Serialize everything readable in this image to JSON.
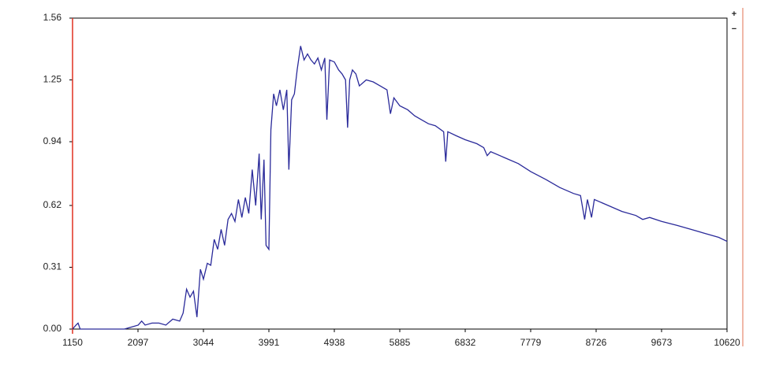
{
  "chart_data": {
    "type": "line",
    "x": [
      1150,
      1200,
      1230,
      1260,
      1500,
      1900,
      2000,
      2100,
      2150,
      2200,
      2300,
      2400,
      2500,
      2600,
      2700,
      2750,
      2800,
      2850,
      2900,
      2950,
      3000,
      3044,
      3100,
      3150,
      3200,
      3250,
      3300,
      3350,
      3400,
      3450,
      3500,
      3550,
      3600,
      3650,
      3700,
      3750,
      3800,
      3850,
      3880,
      3920,
      3950,
      3991,
      4020,
      4060,
      4100,
      4150,
      4200,
      4250,
      4280,
      4320,
      4360,
      4400,
      4450,
      4500,
      4550,
      4600,
      4650,
      4700,
      4750,
      4800,
      4830,
      4870,
      4938,
      5000,
      5050,
      5100,
      5130,
      5160,
      5200,
      5250,
      5300,
      5400,
      5500,
      5600,
      5700,
      5750,
      5800,
      5885,
      6000,
      6100,
      6200,
      6300,
      6400,
      6520,
      6550,
      6580,
      6700,
      6832,
      7000,
      7100,
      7150,
      7200,
      7400,
      7600,
      7779,
      8000,
      8200,
      8400,
      8500,
      8560,
      8600,
      8660,
      8700,
      8900,
      9100,
      9300,
      9400,
      9500,
      9673,
      9900,
      10100,
      10300,
      10500,
      10620
    ],
    "series": [
      {
        "color": "#2a2a9a",
        "values": [
          0,
          0.02,
          0.03,
          0,
          0,
          0,
          0.01,
          0.02,
          0.04,
          0.02,
          0.03,
          0.03,
          0.02,
          0.05,
          0.04,
          0.08,
          0.2,
          0.16,
          0.19,
          0.06,
          0.3,
          0.25,
          0.33,
          0.32,
          0.45,
          0.4,
          0.5,
          0.42,
          0.55,
          0.58,
          0.54,
          0.65,
          0.56,
          0.66,
          0.58,
          0.8,
          0.62,
          0.88,
          0.55,
          0.85,
          0.42,
          0.4,
          1.0,
          1.18,
          1.12,
          1.2,
          1.1,
          1.2,
          0.8,
          1.15,
          1.18,
          1.3,
          1.42,
          1.35,
          1.38,
          1.35,
          1.33,
          1.36,
          1.3,
          1.36,
          1.05,
          1.35,
          1.34,
          1.3,
          1.28,
          1.25,
          1.01,
          1.25,
          1.3,
          1.28,
          1.22,
          1.25,
          1.24,
          1.22,
          1.2,
          1.08,
          1.16,
          1.12,
          1.1,
          1.07,
          1.05,
          1.03,
          1.02,
          0.99,
          0.84,
          0.99,
          0.97,
          0.95,
          0.93,
          0.91,
          0.87,
          0.89,
          0.86,
          0.83,
          0.79,
          0.75,
          0.71,
          0.68,
          0.67,
          0.55,
          0.65,
          0.56,
          0.65,
          0.62,
          0.59,
          0.57,
          0.55,
          0.56,
          0.54,
          0.52,
          0.5,
          0.48,
          0.46,
          0.44
        ]
      }
    ],
    "xlim": [
      1150,
      10620
    ],
    "xticks": [
      1150,
      2097,
      3044,
      3991,
      4938,
      5885,
      6832,
      7779,
      8726,
      9673,
      10620
    ],
    "ylim": [
      0,
      1.56
    ],
    "yticks": [
      {
        "value": 0,
        "label": "0.00"
      },
      0.31,
      0.62,
      0.94,
      1.25,
      1.56
    ],
    "axis_color": "#e03020"
  },
  "controls": {
    "zoom_in": "+",
    "zoom_out": "−"
  }
}
